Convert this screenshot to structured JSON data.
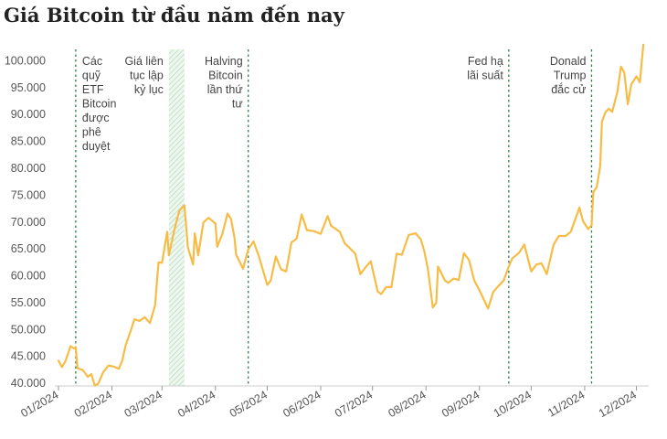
{
  "chart_data": {
    "type": "line",
    "title": "Giá Bitcoin từ đầu năm đến nay",
    "xlabel": "",
    "ylabel": "",
    "ylim": [
      39500,
      104500
    ],
    "xlim": [
      "2024-01-01",
      "2024-12-06"
    ],
    "grid": false,
    "line_color": "#f7bc45",
    "yticks": [
      {
        "value": 40000,
        "label": "40.000"
      },
      {
        "value": 45000,
        "label": "45.000"
      },
      {
        "value": 50000,
        "label": "50.000"
      },
      {
        "value": 55000,
        "label": "55.000"
      },
      {
        "value": 60000,
        "label": "60.000"
      },
      {
        "value": 65000,
        "label": "65.000"
      },
      {
        "value": 70000,
        "label": "70.000"
      },
      {
        "value": 75000,
        "label": "75.000"
      },
      {
        "value": 80000,
        "label": "80.000"
      },
      {
        "value": 85000,
        "label": "85.000"
      },
      {
        "value": 90000,
        "label": "90.000"
      },
      {
        "value": 95000,
        "label": "95.000"
      },
      {
        "value": 100000,
        "label": "100.000"
      }
    ],
    "xticks": [
      {
        "date": "2024-01-01",
        "label": "01/2024"
      },
      {
        "date": "2024-02-01",
        "label": "02/2024"
      },
      {
        "date": "2024-03-01",
        "label": "03/2024"
      },
      {
        "date": "2024-04-01",
        "label": "04/2024"
      },
      {
        "date": "2024-05-01",
        "label": "05/2024"
      },
      {
        "date": "2024-06-01",
        "label": "06/2024"
      },
      {
        "date": "2024-07-01",
        "label": "07/2024"
      },
      {
        "date": "2024-08-01",
        "label": "08/2024"
      },
      {
        "date": "2024-09-01",
        "label": "09/2024"
      },
      {
        "date": "2024-10-01",
        "label": "10/2024"
      },
      {
        "date": "2024-11-01",
        "label": "11/2024"
      },
      {
        "date": "2024-12-01",
        "label": "12/2024"
      }
    ],
    "series": [
      {
        "points": [
          [
            "2024-01-01",
            44200
          ],
          [
            "2024-01-03",
            43000
          ],
          [
            "2024-01-05",
            44100
          ],
          [
            "2024-01-08",
            46900
          ],
          [
            "2024-01-10",
            46500
          ],
          [
            "2024-01-11",
            46700
          ],
          [
            "2024-01-12",
            42800
          ],
          [
            "2024-01-15",
            42500
          ],
          [
            "2024-01-18",
            41200
          ],
          [
            "2024-01-20",
            41700
          ],
          [
            "2024-01-22",
            39600
          ],
          [
            "2024-01-24",
            39900
          ],
          [
            "2024-01-27",
            42100
          ],
          [
            "2024-01-30",
            43300
          ],
          [
            "2024-02-02",
            43100
          ],
          [
            "2024-02-05",
            42700
          ],
          [
            "2024-02-07",
            44300
          ],
          [
            "2024-02-09",
            47100
          ],
          [
            "2024-02-12",
            49900
          ],
          [
            "2024-02-14",
            51900
          ],
          [
            "2024-02-17",
            51600
          ],
          [
            "2024-02-20",
            52300
          ],
          [
            "2024-02-23",
            51200
          ],
          [
            "2024-02-26",
            54500
          ],
          [
            "2024-02-28",
            62500
          ],
          [
            "2024-03-01",
            62400
          ],
          [
            "2024-03-04",
            68200
          ],
          [
            "2024-03-05",
            63800
          ],
          [
            "2024-03-08",
            68300
          ],
          [
            "2024-03-11",
            72100
          ],
          [
            "2024-03-14",
            73100
          ],
          [
            "2024-03-16",
            65300
          ],
          [
            "2024-03-19",
            62100
          ],
          [
            "2024-03-20",
            67900
          ],
          [
            "2024-03-22",
            63800
          ],
          [
            "2024-03-25",
            69900
          ],
          [
            "2024-03-28",
            70800
          ],
          [
            "2024-04-01",
            69700
          ],
          [
            "2024-04-02",
            65400
          ],
          [
            "2024-04-05",
            67800
          ],
          [
            "2024-04-08",
            71600
          ],
          [
            "2024-04-10",
            70600
          ],
          [
            "2024-04-12",
            67100
          ],
          [
            "2024-04-13",
            63900
          ],
          [
            "2024-04-17",
            61300
          ],
          [
            "2024-04-20",
            64900
          ],
          [
            "2024-04-23",
            66400
          ],
          [
            "2024-04-26",
            63800
          ],
          [
            "2024-05-01",
            58300
          ],
          [
            "2024-05-03",
            59100
          ],
          [
            "2024-05-06",
            63600
          ],
          [
            "2024-05-09",
            61200
          ],
          [
            "2024-05-12",
            60800
          ],
          [
            "2024-05-15",
            66200
          ],
          [
            "2024-05-18",
            66900
          ],
          [
            "2024-05-21",
            71400
          ],
          [
            "2024-05-24",
            68500
          ],
          [
            "2024-05-28",
            68300
          ],
          [
            "2024-06-01",
            67800
          ],
          [
            "2024-06-05",
            71100
          ],
          [
            "2024-06-07",
            69300
          ],
          [
            "2024-06-12",
            68200
          ],
          [
            "2024-06-15",
            66000
          ],
          [
            "2024-06-18",
            65100
          ],
          [
            "2024-06-21",
            64100
          ],
          [
            "2024-06-24",
            60300
          ],
          [
            "2024-06-27",
            61600
          ],
          [
            "2024-06-30",
            62700
          ],
          [
            "2024-07-04",
            57100
          ],
          [
            "2024-07-06",
            56600
          ],
          [
            "2024-07-09",
            57900
          ],
          [
            "2024-07-12",
            57900
          ],
          [
            "2024-07-15",
            64100
          ],
          [
            "2024-07-18",
            63900
          ],
          [
            "2024-07-22",
            67600
          ],
          [
            "2024-07-26",
            67900
          ],
          [
            "2024-07-29",
            66800
          ],
          [
            "2024-07-31",
            64600
          ],
          [
            "2024-08-02",
            61500
          ],
          [
            "2024-08-05",
            54100
          ],
          [
            "2024-08-07",
            55000
          ],
          [
            "2024-08-08",
            61700
          ],
          [
            "2024-08-12",
            59100
          ],
          [
            "2024-08-14",
            58700
          ],
          [
            "2024-08-17",
            59500
          ],
          [
            "2024-08-20",
            59200
          ],
          [
            "2024-08-23",
            64200
          ],
          [
            "2024-08-26",
            62900
          ],
          [
            "2024-08-29",
            59100
          ],
          [
            "2024-09-01",
            57300
          ],
          [
            "2024-09-06",
            53900
          ],
          [
            "2024-09-09",
            57000
          ],
          [
            "2024-09-12",
            58100
          ],
          [
            "2024-09-15",
            59100
          ],
          [
            "2024-09-18",
            61700
          ],
          [
            "2024-09-20",
            63200
          ],
          [
            "2024-09-24",
            64300
          ],
          [
            "2024-09-27",
            65800
          ],
          [
            "2024-10-01",
            60800
          ],
          [
            "2024-10-04",
            62100
          ],
          [
            "2024-10-07",
            62300
          ],
          [
            "2024-10-10",
            60300
          ],
          [
            "2024-10-14",
            65800
          ],
          [
            "2024-10-17",
            67400
          ],
          [
            "2024-10-21",
            67400
          ],
          [
            "2024-10-24",
            68200
          ],
          [
            "2024-10-29",
            72700
          ],
          [
            "2024-10-31",
            70200
          ],
          [
            "2024-11-03",
            68700
          ],
          [
            "2024-11-05",
            69400
          ],
          [
            "2024-11-06",
            75600
          ],
          [
            "2024-11-08",
            76500
          ],
          [
            "2024-11-10",
            80400
          ],
          [
            "2024-11-11",
            88700
          ],
          [
            "2024-11-13",
            90400
          ],
          [
            "2024-11-15",
            91100
          ],
          [
            "2024-11-17",
            90500
          ],
          [
            "2024-11-20",
            94300
          ],
          [
            "2024-11-22",
            98900
          ],
          [
            "2024-11-24",
            97800
          ],
          [
            "2024-11-26",
            91900
          ],
          [
            "2024-11-28",
            95600
          ],
          [
            "2024-12-01",
            97100
          ],
          [
            "2024-12-03",
            96000
          ],
          [
            "2024-12-05",
            103000
          ]
        ]
      }
    ],
    "event_lines": [
      {
        "date": "2024-01-11",
        "label": [
          "Các",
          "quỹ",
          "ETF",
          "Bitcoin",
          "được",
          "phê",
          "duyệt"
        ],
        "align": "start"
      },
      {
        "date": "2024-04-20",
        "label": [
          "Halving",
          "Bitcoin",
          "lần thứ",
          "tư"
        ],
        "align": "end"
      },
      {
        "date": "2024-09-18",
        "label": [
          "Fed hạ",
          "lãi suất"
        ],
        "align": "end"
      },
      {
        "date": "2024-11-05",
        "label": [
          "Donald",
          "Trump",
          "đắc cử"
        ],
        "align": "end"
      }
    ],
    "shaded_period": {
      "start": "2024-03-05",
      "end": "2024-03-14",
      "label": [
        "Giá liên",
        "tục lập",
        "kỷ lục"
      ]
    }
  }
}
